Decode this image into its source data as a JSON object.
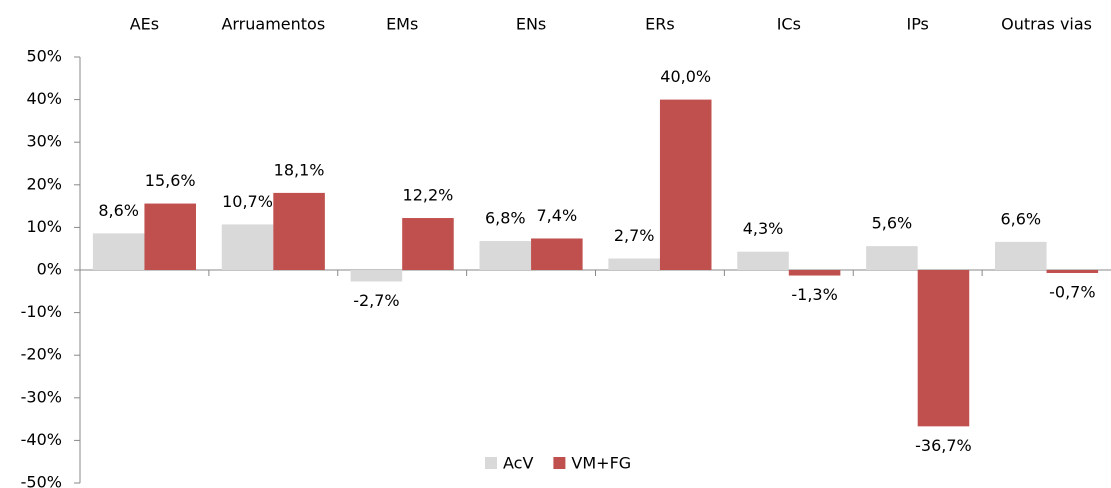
{
  "chart_data": {
    "type": "bar",
    "categories": [
      "AEs",
      "Arruamentos",
      "EMs",
      "ENs",
      "ERs",
      "ICs",
      "IPs",
      "Outras vias"
    ],
    "series": [
      {
        "name": "AcV",
        "color": "#d9d9d9",
        "values": [
          8.6,
          10.7,
          -2.7,
          6.8,
          2.7,
          4.3,
          5.6,
          6.6
        ],
        "value_labels": [
          "8,6%",
          "10,7%",
          "-2,7%",
          "6,8%",
          "2,7%",
          "4,3%",
          "5,6%",
          "6,6%"
        ]
      },
      {
        "name": "VM+FG",
        "color": "#c0504d",
        "values": [
          15.6,
          18.1,
          12.2,
          7.4,
          40.0,
          -1.3,
          -36.7,
          -0.7
        ],
        "value_labels": [
          "15,6%",
          "18,1%",
          "12,2%",
          "7,4%",
          "40,0%",
          "-1,3%",
          "-36,7%",
          "-0,7%"
        ]
      }
    ],
    "ylim": [
      -50,
      50
    ],
    "yticks": [
      {
        "value": 50,
        "label": "50%"
      },
      {
        "value": 40,
        "label": "40%"
      },
      {
        "value": 30,
        "label": "30%"
      },
      {
        "value": 20,
        "label": "20%"
      },
      {
        "value": 10,
        "label": "10%"
      },
      {
        "value": 0,
        "label": "0%"
      },
      {
        "value": -10,
        "label": "-10%"
      },
      {
        "value": -20,
        "label": "-20%"
      },
      {
        "value": -30,
        "label": "-30%"
      },
      {
        "value": -40,
        "label": "-40%"
      },
      {
        "value": -50,
        "label": "-50%"
      }
    ],
    "grid": false,
    "legend": "bottom"
  }
}
